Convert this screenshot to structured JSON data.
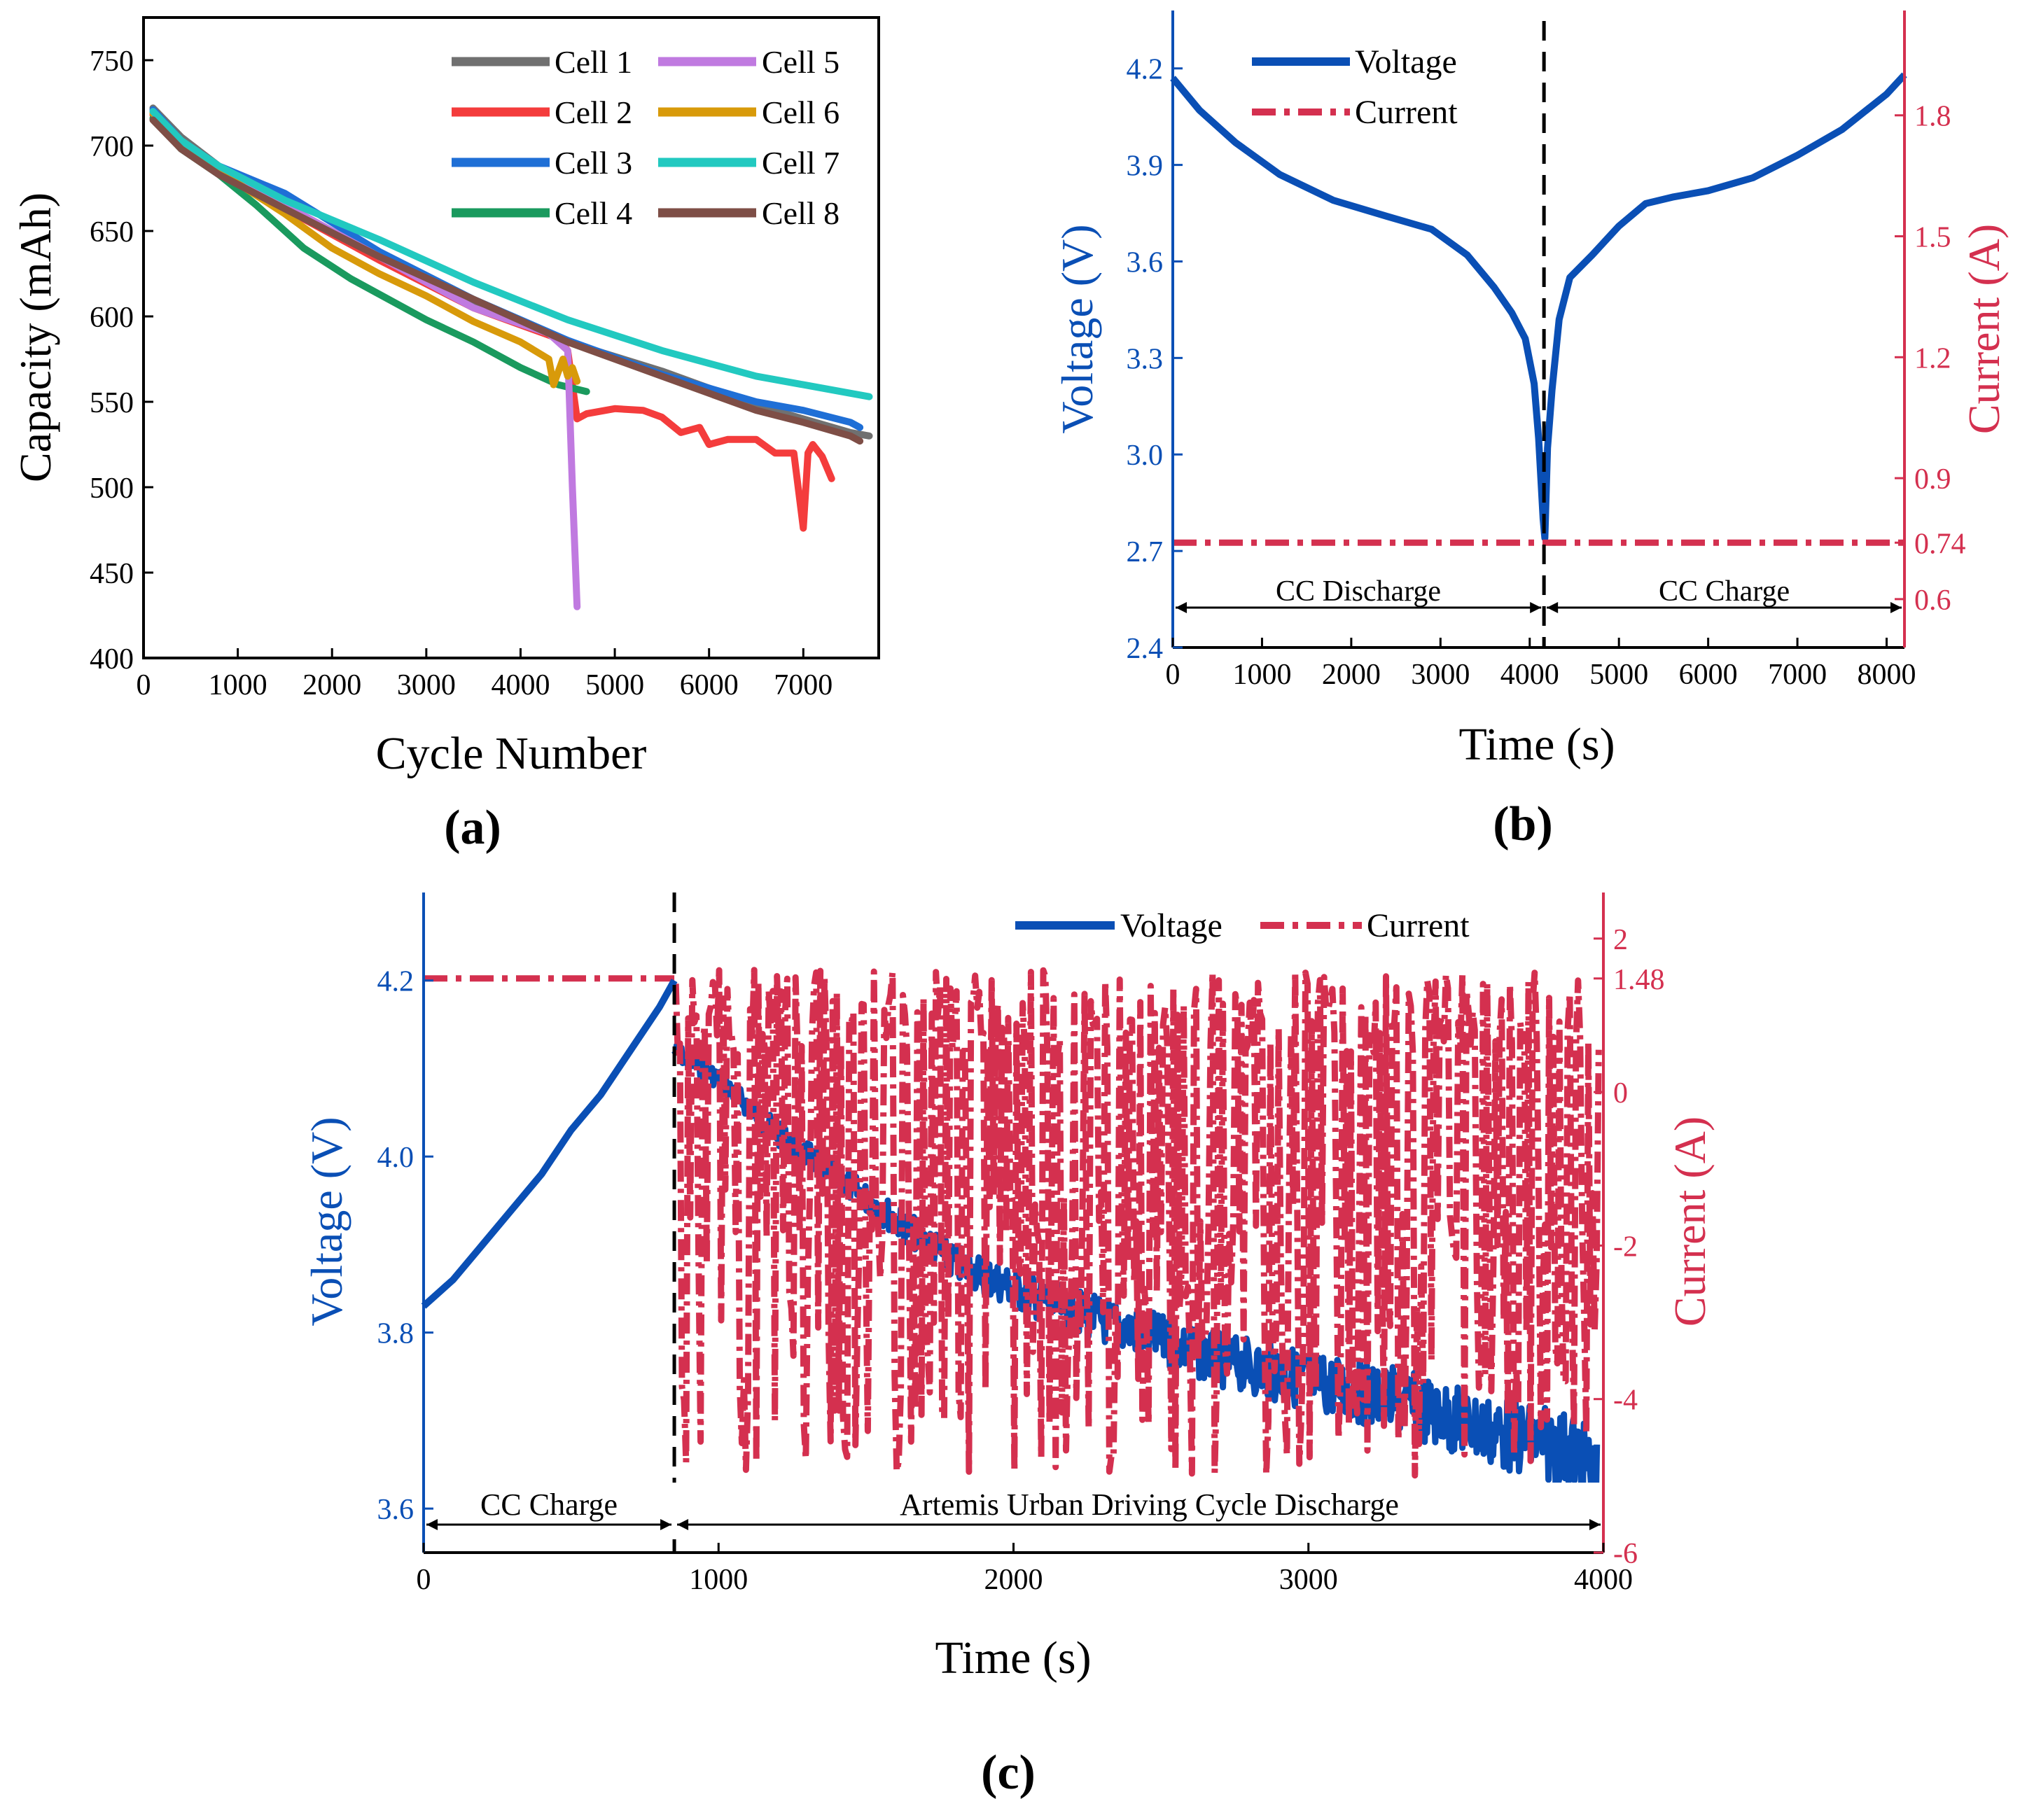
{
  "colors": {
    "axis": "#000000",
    "blue": "#0a4fb5",
    "red": "#d4304f",
    "cell1": "#707070",
    "cell2": "#f43c3c",
    "cell3": "#1f6fd6",
    "cell4": "#1a9a5e",
    "cell5": "#c07ae0",
    "cell6": "#d89a0a",
    "cell7": "#22c9c0",
    "cell8": "#7e4e46"
  },
  "chart_data": [
    {
      "id": "a",
      "type": "line",
      "caption": "(a)",
      "xlabel": "Cycle Number",
      "ylabel": "Capacity (mAh)",
      "xlim": [
        0,
        7800
      ],
      "ylim": [
        400,
        775
      ],
      "xticks": [
        "0",
        "1000",
        "2000",
        "3000",
        "4000",
        "5000",
        "6000",
        "7000"
      ],
      "xtick_values": [
        0,
        1000,
        2000,
        3000,
        4000,
        5000,
        6000,
        7000
      ],
      "yticks": [
        "400",
        "450",
        "500",
        "550",
        "600",
        "650",
        "700",
        "750"
      ],
      "ytick_values": [
        400,
        450,
        500,
        550,
        600,
        650,
        700,
        750
      ],
      "series": [
        {
          "name": "Cell 1",
          "color_key": "cell1",
          "x": [
            100,
            400,
            800,
            1500,
            2500,
            3500,
            4500,
            5500,
            6500,
            7000,
            7500,
            7700
          ],
          "y": [
            722,
            705,
            688,
            665,
            635,
            608,
            585,
            568,
            548,
            540,
            532,
            530
          ]
        },
        {
          "name": "Cell 2",
          "color_key": "cell2",
          "x": [
            100,
            400,
            800,
            1500,
            2500,
            3500,
            4400,
            4500,
            4600,
            4700,
            5000,
            5300,
            5500,
            5700,
            5900,
            6000,
            6200,
            6500,
            6700,
            6900,
            7000,
            7050,
            7100,
            7200,
            7300
          ],
          "y": [
            718,
            700,
            685,
            663,
            633,
            605,
            587,
            580,
            540,
            543,
            546,
            545,
            541,
            532,
            535,
            525,
            528,
            528,
            520,
            520,
            476,
            520,
            525,
            518,
            505
          ]
        },
        {
          "name": "Cell 3",
          "color_key": "cell3",
          "x": [
            100,
            400,
            800,
            1500,
            2500,
            3500,
            4500,
            5500,
            6500,
            7000,
            7500,
            7600
          ],
          "y": [
            721,
            703,
            688,
            672,
            638,
            610,
            586,
            566,
            550,
            545,
            538,
            535
          ]
        },
        {
          "name": "Cell 4",
          "color_key": "cell4",
          "x": [
            100,
            400,
            800,
            1200,
            1700,
            2200,
            3000,
            3500,
            4000,
            4400,
            4700
          ],
          "y": [
            716,
            698,
            683,
            665,
            640,
            622,
            598,
            585,
            570,
            560,
            556
          ]
        },
        {
          "name": "Cell 5",
          "color_key": "cell5",
          "x": [
            100,
            400,
            800,
            1500,
            2500,
            3500,
            4300,
            4500,
            4550,
            4600
          ],
          "y": [
            720,
            702,
            686,
            665,
            635,
            605,
            590,
            580,
            500,
            430
          ]
        },
        {
          "name": "Cell 6",
          "color_key": "cell6",
          "x": [
            100,
            400,
            800,
            1500,
            2000,
            2500,
            3000,
            3500,
            4000,
            4300,
            4350,
            4450,
            4500,
            4550,
            4600
          ],
          "y": [
            719,
            700,
            685,
            660,
            640,
            625,
            612,
            597,
            585,
            575,
            560,
            575,
            565,
            570,
            562
          ]
        },
        {
          "name": "Cell 7",
          "color_key": "cell7",
          "x": [
            100,
            400,
            800,
            1500,
            2500,
            3500,
            4500,
            5500,
            6500,
            7000,
            7500,
            7700
          ],
          "y": [
            720,
            703,
            688,
            668,
            645,
            620,
            598,
            580,
            565,
            560,
            555,
            553
          ]
        },
        {
          "name": "Cell 8",
          "color_key": "cell8",
          "x": [
            100,
            400,
            800,
            1500,
            2500,
            3500,
            4500,
            5500,
            6500,
            7000,
            7500,
            7600
          ],
          "y": [
            715,
            698,
            683,
            663,
            635,
            610,
            585,
            565,
            545,
            538,
            530,
            527
          ]
        }
      ]
    },
    {
      "id": "b",
      "type": "line",
      "caption": "(b)",
      "xlabel": "Time (s)",
      "ylabel": "Voltage (V)",
      "y2label": "Current (A)",
      "xlim": [
        0,
        8200
      ],
      "ylim": [
        2.4,
        4.38
      ],
      "y2lim": [
        0.48,
        2.06
      ],
      "xticks": [
        "0",
        "1000",
        "2000",
        "3000",
        "4000",
        "5000",
        "6000",
        "7000",
        "8000"
      ],
      "xtick_values": [
        0,
        1000,
        2000,
        3000,
        4000,
        5000,
        6000,
        7000,
        8000
      ],
      "yticks": [
        "2.4",
        "2.7",
        "3.0",
        "3.3",
        "3.6",
        "3.9",
        "4.2"
      ],
      "ytick_values": [
        2.4,
        2.7,
        3.0,
        3.3,
        3.6,
        3.9,
        4.2
      ],
      "y2ticks": [
        "0.6",
        "0.74",
        "0.9",
        "1.2",
        "1.5",
        "1.8"
      ],
      "y2tick_values": [
        0.6,
        0.74,
        0.9,
        1.2,
        1.5,
        1.8
      ],
      "divider_x": 4160,
      "region_left": "CC Discharge",
      "region_right": "CC Charge",
      "series": [
        {
          "name": "Voltage",
          "axis": "left",
          "color_key": "blue",
          "style": "solid",
          "x": [
            0,
            300,
            700,
            1200,
            1800,
            2400,
            2900,
            3300,
            3600,
            3800,
            3950,
            4050,
            4100,
            4150,
            4170,
            4200,
            4250,
            4330,
            4450,
            4700,
            5000,
            5300,
            5600,
            6000,
            6500,
            7000,
            7500,
            8000,
            8200
          ],
          "y": [
            4.17,
            4.07,
            3.97,
            3.87,
            3.79,
            3.74,
            3.7,
            3.62,
            3.52,
            3.44,
            3.36,
            3.22,
            3.05,
            2.8,
            2.74,
            3.02,
            3.2,
            3.42,
            3.55,
            3.62,
            3.71,
            3.78,
            3.8,
            3.82,
            3.86,
            3.93,
            4.01,
            4.12,
            4.18
          ]
        },
        {
          "name": "Current",
          "axis": "right",
          "color_key": "red",
          "style": "dashdot",
          "x": [
            0,
            8200
          ],
          "y": [
            0.74,
            0.74
          ]
        }
      ]
    },
    {
      "id": "c",
      "type": "line",
      "caption": "(c)",
      "xlabel": "Time (s)",
      "ylabel": "Voltage (V)",
      "y2label": "Current (A)",
      "xlim": [
        0,
        4000
      ],
      "ylim": [
        3.55,
        4.3
      ],
      "y2lim": [
        -6,
        2.6
      ],
      "xticks": [
        "0",
        "1000",
        "2000",
        "3000",
        "4000"
      ],
      "xtick_values": [
        0,
        1000,
        2000,
        3000,
        4000
      ],
      "yticks": [
        "3.6",
        "3.8",
        "4.0",
        "4.2"
      ],
      "ytick_values": [
        3.6,
        3.8,
        4.0,
        4.2
      ],
      "y2ticks": [
        "-6",
        "-4",
        "-2",
        "0",
        "1.48",
        "2"
      ],
      "y2tick_values": [
        -6,
        -4,
        -2,
        0,
        1.48,
        2
      ],
      "divider_x": 850,
      "region_left": "CC Charge",
      "region_right": "Artemis Urban Driving Cycle Discharge",
      "series": [
        {
          "name": "Voltage",
          "axis": "left",
          "color_key": "blue",
          "style": "solid",
          "charge_x": [
            0,
            100,
            200,
            300,
            400,
            500,
            600,
            700,
            800,
            850
          ],
          "charge_y": [
            3.83,
            3.86,
            3.9,
            3.94,
            3.98,
            4.03,
            4.07,
            4.12,
            4.17,
            4.2
          ],
          "discharge_trend_x": [
            850,
            1000,
            1200,
            1500,
            1800,
            2100,
            2400,
            2700,
            3000,
            3300,
            3600,
            3900,
            3980
          ],
          "discharge_trend_y": [
            4.13,
            4.1,
            4.04,
            3.97,
            3.9,
            3.86,
            3.83,
            3.8,
            3.78,
            3.76,
            3.73,
            3.71,
            3.68
          ]
        },
        {
          "name": "Current",
          "axis": "right",
          "color_key": "red",
          "style": "dashdot",
          "charge_x": [
            0,
            850
          ],
          "charge_y": [
            1.48,
            1.48
          ],
          "discharge_range": [
            -5.0,
            1.6
          ]
        }
      ]
    }
  ]
}
